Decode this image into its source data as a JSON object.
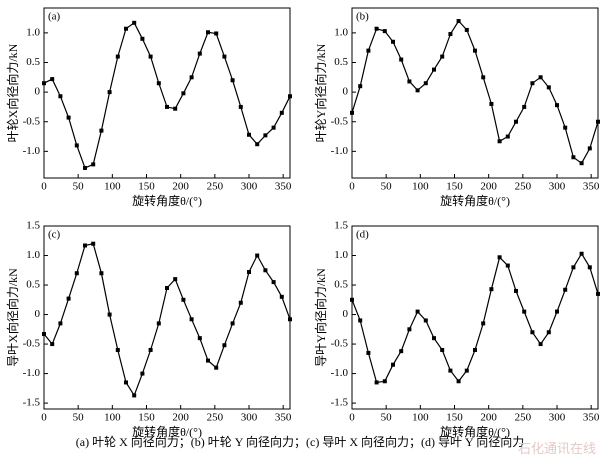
{
  "chart_data": [
    {
      "type": "line",
      "title": "(a)",
      "ylabel": "叶轮X向径向力/kN",
      "xlabel": "旋转角度θ/(°)",
      "color": "#000000",
      "x": [
        0,
        12,
        24,
        36,
        48,
        60,
        72,
        84,
        96,
        108,
        120,
        132,
        144,
        156,
        168,
        180,
        192,
        204,
        216,
        228,
        240,
        252,
        264,
        276,
        288,
        300,
        312,
        324,
        336,
        348,
        360
      ],
      "values": [
        0.15,
        0.22,
        -0.07,
        -0.43,
        -0.9,
        -1.28,
        -1.22,
        -0.65,
        0.0,
        0.6,
        1.07,
        1.17,
        0.9,
        0.6,
        0.15,
        -0.25,
        -0.28,
        -0.02,
        0.25,
        0.65,
        1.01,
        0.99,
        0.6,
        0.2,
        -0.25,
        -0.72,
        -0.88,
        -0.73,
        -0.6,
        -0.35,
        -0.07
      ],
      "xlim": [
        0,
        360
      ],
      "xticks": [
        0,
        50,
        100,
        150,
        200,
        250,
        300,
        350
      ],
      "ylim": [
        -1.45,
        1.42
      ],
      "yticks": [
        {
          "value": -1,
          "label": "-1.0"
        },
        -0.5,
        0,
        0.5,
        {
          "value": 1,
          "label": "1.0"
        }
      ]
    },
    {
      "type": "line",
      "title": "(b)",
      "ylabel": "叶轮Y向径向力/kN",
      "xlabel": "旋转角度θ/(°)",
      "color": "#000000",
      "x": [
        0,
        12,
        24,
        36,
        48,
        60,
        72,
        84,
        96,
        108,
        120,
        132,
        144,
        156,
        168,
        180,
        192,
        204,
        216,
        228,
        240,
        252,
        264,
        276,
        288,
        300,
        312,
        324,
        336,
        348,
        360
      ],
      "values": [
        -0.35,
        0.1,
        0.7,
        1.07,
        1.03,
        0.85,
        0.55,
        0.18,
        0.03,
        0.15,
        0.38,
        0.6,
        0.98,
        1.2,
        1.05,
        0.7,
        0.25,
        -0.2,
        -0.83,
        -0.75,
        -0.5,
        -0.25,
        0.15,
        0.25,
        0.08,
        -0.22,
        -0.6,
        -1.1,
        -1.2,
        -0.95,
        -0.5
      ],
      "xlim": [
        0,
        360
      ],
      "xticks": [
        0,
        50,
        100,
        150,
        200,
        250,
        300,
        350
      ],
      "ylim": [
        -1.45,
        1.42
      ],
      "yticks": [
        {
          "value": -1,
          "label": "-1.0"
        },
        -0.5,
        0,
        0.5,
        {
          "value": 1,
          "label": "1.0"
        }
      ]
    },
    {
      "type": "line",
      "title": "(c)",
      "ylabel": "导叶X向径向力/kN",
      "xlabel": "旋转角度θ/(°)",
      "color": "#000000",
      "x": [
        0,
        12,
        24,
        36,
        48,
        60,
        72,
        84,
        96,
        108,
        120,
        132,
        144,
        156,
        168,
        180,
        192,
        204,
        216,
        228,
        240,
        252,
        264,
        276,
        288,
        300,
        312,
        324,
        336,
        348,
        360
      ],
      "values": [
        -0.33,
        -0.5,
        -0.15,
        0.27,
        0.7,
        1.17,
        1.2,
        0.7,
        0.0,
        -0.6,
        -1.15,
        -1.37,
        -1.0,
        -0.6,
        -0.15,
        0.45,
        0.6,
        0.25,
        -0.08,
        -0.4,
        -0.78,
        -0.9,
        -0.52,
        -0.15,
        0.2,
        0.72,
        1.0,
        0.75,
        0.55,
        0.3,
        -0.08
      ],
      "xlim": [
        0,
        360
      ],
      "xticks": [
        0,
        50,
        100,
        150,
        200,
        250,
        300,
        350
      ],
      "ylim": [
        -1.6,
        1.5
      ],
      "yticks": [
        {
          "value": -1.5,
          "label": "-1.5"
        },
        {
          "value": -1,
          "label": "-1.0"
        },
        -0.5,
        0,
        0.5,
        {
          "value": 1,
          "label": "1.0"
        },
        1.5
      ]
    },
    {
      "type": "line",
      "title": "(d)",
      "ylabel": "导叶Y向径向力/kN",
      "xlabel": "旋转角度θ/(°)",
      "color": "#000000",
      "x": [
        0,
        12,
        24,
        36,
        48,
        60,
        72,
        84,
        96,
        108,
        120,
        132,
        144,
        156,
        168,
        180,
        192,
        204,
        216,
        228,
        240,
        252,
        264,
        276,
        288,
        300,
        312,
        324,
        336,
        348,
        360
      ],
      "values": [
        0.25,
        -0.1,
        -0.65,
        -1.15,
        -1.13,
        -0.85,
        -0.62,
        -0.25,
        0.05,
        -0.1,
        -0.4,
        -0.6,
        -0.95,
        -1.13,
        -0.95,
        -0.6,
        -0.15,
        0.43,
        0.97,
        0.83,
        0.4,
        0.05,
        -0.3,
        -0.5,
        -0.3,
        0.05,
        0.42,
        0.8,
        1.03,
        0.8,
        0.35
      ],
      "xlim": [
        0,
        360
      ],
      "xticks": [
        0,
        50,
        100,
        150,
        200,
        250,
        300,
        350
      ],
      "ylim": [
        -1.6,
        1.5
      ],
      "yticks": [
        {
          "value": -1.5,
          "label": "-1.5"
        },
        {
          "value": -1,
          "label": "-1.0"
        },
        -0.5,
        0,
        0.5,
        {
          "value": 1,
          "label": "1.0"
        },
        1.5
      ]
    }
  ],
  "caption": "(a) 叶轮 X 向径向力；(b) 叶轮 Y 向径向力；(c) 导叶 X 向径向力；(d) 导叶 Y 向径向力",
  "watermark": "石化通讯在线"
}
